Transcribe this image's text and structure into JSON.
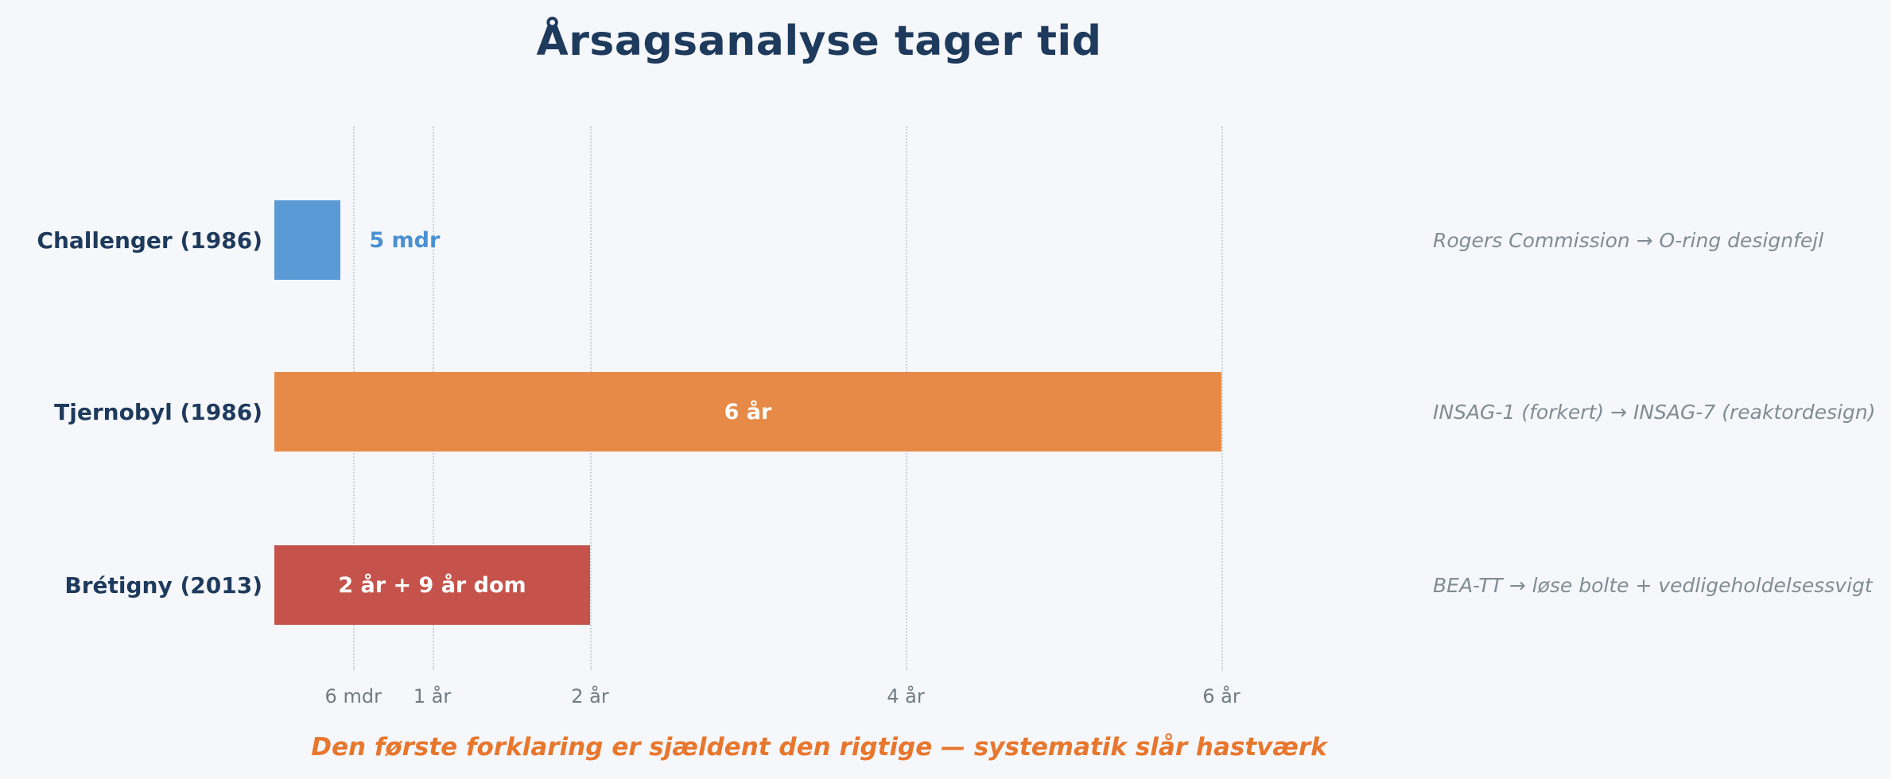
{
  "chart_data": {
    "type": "bar",
    "orientation": "horizontal",
    "title": "Årsagsanalyse tager tid",
    "caption": "Den første forklaring er sjældent den rigtige — systematik slår hastværk",
    "xlabel": "",
    "ylabel": "",
    "xlim_years": [
      0,
      6.5
    ],
    "grid": "vertical-dotted",
    "legend": "none",
    "x_ticks": [
      {
        "label": "6 mdr",
        "years": 0.5
      },
      {
        "label": "1 år",
        "years": 1
      },
      {
        "label": "2 år",
        "years": 2
      },
      {
        "label": "4 år",
        "years": 4
      },
      {
        "label": "6 år",
        "years": 6
      }
    ],
    "rows": [
      {
        "category": "Challenger (1986)",
        "duration_years": 0.42,
        "value_label": "5 mdr",
        "value_label_position": "outside",
        "bar_color": "#5B9BD5",
        "value_label_color": "#4A90D2",
        "annotation": "Rogers Commission → O-ring designfejl"
      },
      {
        "category": "Tjernobyl (1986)",
        "duration_years": 6,
        "value_label": "6 år",
        "value_label_position": "inside",
        "bar_color": "#E78A47",
        "value_label_color": "#FFFFFF",
        "annotation": "INSAG-1 (forkert) → INSAG-7 (reaktordesign)"
      },
      {
        "category": "Brétigny (2013)",
        "duration_years": 2,
        "value_label": "2 år + 9 år dom",
        "value_label_position": "inside",
        "bar_color": "#C5534B",
        "value_label_color": "#FFFFFF",
        "annotation": "BEA-TT → løse bolte + vedligeholdelsessvigt"
      }
    ],
    "colors": {
      "background": "#F5F7FA",
      "title": "#1E3A5C",
      "category_label": "#1E3A5C",
      "annotation": "#808C93",
      "tick_label": "#6F7B85",
      "caption": "#E8762D",
      "gridline": "#CBD1D8"
    }
  }
}
